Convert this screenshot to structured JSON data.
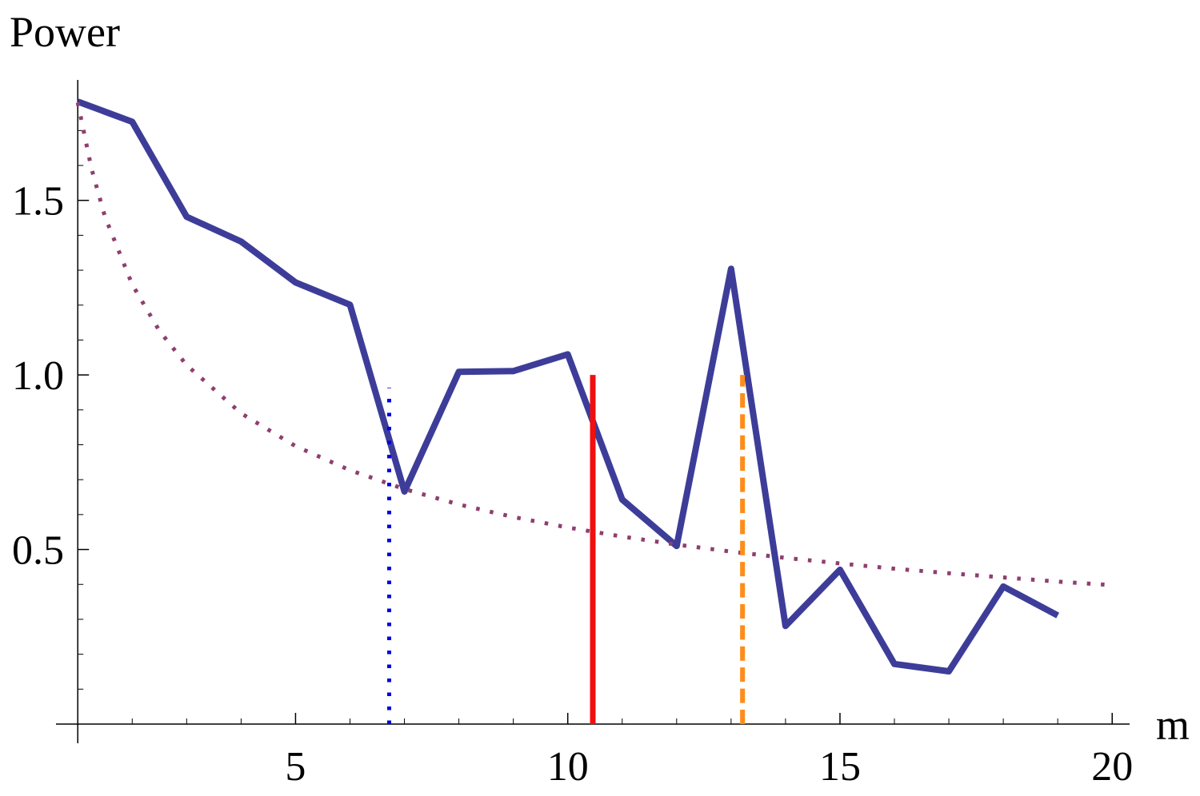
{
  "chart_data": {
    "type": "line",
    "y_label": "Power",
    "x_label": "m",
    "xlim": [
      0.6,
      20.32
    ],
    "ylim": [
      -0.055,
      1.845
    ],
    "xticks": [
      5,
      10,
      15,
      20
    ],
    "yticks": [
      0.5,
      {
        "value": 1,
        "label": "1.0"
      },
      1.5
    ],
    "xminorticks": [
      1,
      2,
      3,
      4,
      6,
      7,
      8,
      9,
      11,
      12,
      13,
      14,
      16,
      17,
      18,
      19
    ],
    "yminorticks": [
      0.1,
      0.2,
      0.3,
      0.4,
      0.6,
      0.7,
      0.8,
      0.9,
      1.1,
      1.2,
      1.3,
      1.4,
      1.6,
      1.7
    ],
    "axis_origin": [
      1,
      0
    ],
    "series": [
      {
        "color": "#3d3d99",
        "style": "solid",
        "width": 8,
        "x": [
          1,
          2,
          3,
          4,
          5,
          6,
          7,
          8,
          9,
          10,
          11,
          12,
          13,
          14,
          15,
          16,
          17,
          18,
          19
        ],
        "values": [
          1.783,
          1.725,
          1.453,
          1.382,
          1.265,
          1.201,
          0.666,
          1.009,
          1.011,
          1.059,
          0.643,
          0.51,
          1.304,
          0.281,
          0.442,
          0.172,
          0.151,
          0.394,
          0.311
        ]
      },
      {
        "color": "#8e3f6e",
        "style": "dotted",
        "width": 5,
        "x": [
          1,
          1.25,
          1.5,
          2,
          2.5,
          3,
          4,
          5,
          6,
          7,
          8,
          9,
          10,
          11,
          12,
          13,
          14,
          15,
          16,
          17,
          18,
          19,
          20
        ],
        "values": [
          1.78,
          1.592,
          1.453,
          1.259,
          1.126,
          1.028,
          0.89,
          0.796,
          0.727,
          0.673,
          0.629,
          0.593,
          0.563,
          0.537,
          0.514,
          0.494,
          0.476,
          0.46,
          0.445,
          0.432,
          0.42,
          0.408,
          0.398
        ]
      },
      {
        "color": "#0000e0",
        "style": "dotted",
        "width": 5,
        "x": [
          6.72,
          6.72
        ],
        "values": [
          0,
          0.963
        ]
      },
      {
        "color": "#f01010",
        "style": "solid",
        "width": 7,
        "x": [
          10.46,
          10.46
        ],
        "values": [
          0,
          1.0
        ]
      },
      {
        "color": "#ff8c1a",
        "style": "dashed",
        "width": 6,
        "x": [
          13.21,
          13.21
        ],
        "values": [
          0,
          1.0
        ]
      }
    ]
  }
}
